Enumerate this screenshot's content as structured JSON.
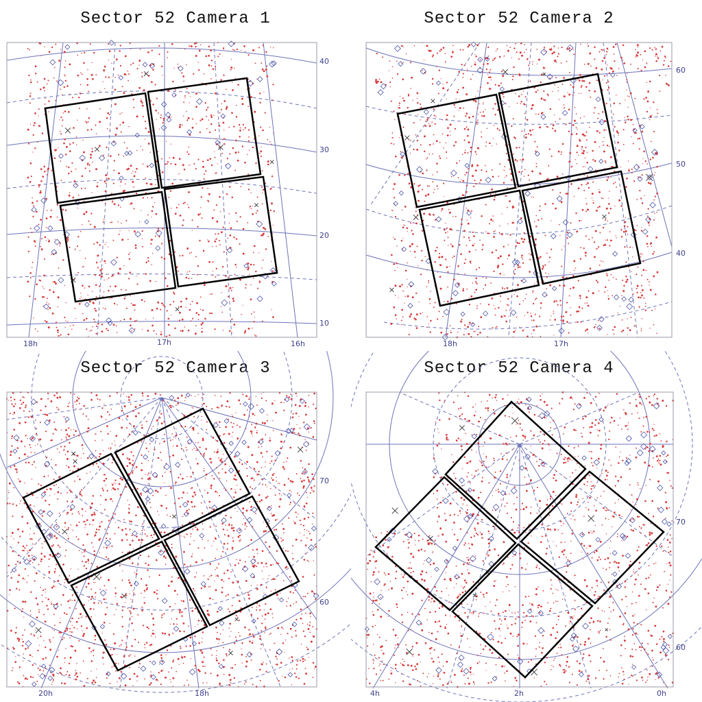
{
  "panels": [
    {
      "id": "camera-1",
      "title": "Sector 52 Camera 1",
      "dec_labels": [
        "40",
        "30",
        "20",
        "10"
      ],
      "ra_labels": [
        "18h",
        "17h",
        "16h"
      ]
    },
    {
      "id": "camera-2",
      "title": "Sector 52 Camera 2",
      "dec_labels": [
        "60",
        "50",
        "40"
      ],
      "ra_labels": [
        "18h",
        "17h"
      ]
    },
    {
      "id": "camera-3",
      "title": "Sector 52 Camera 3",
      "dec_labels": [
        "70",
        "60"
      ],
      "ra_labels": [
        "20h",
        "18h"
      ]
    },
    {
      "id": "camera-4",
      "title": "Sector 52 Camera 4",
      "dec_labels": [
        "70",
        "60"
      ],
      "ra_labels": [
        "4h",
        "2h",
        "0h"
      ]
    }
  ],
  "colors": {
    "grid_line": "#6c72b8",
    "star_point": "#d63a3a",
    "target_diamond": "#4b53a8",
    "bright_star_cross": "#333333",
    "ccd_outline": "#000000",
    "frame": "#9a9aa8"
  }
}
